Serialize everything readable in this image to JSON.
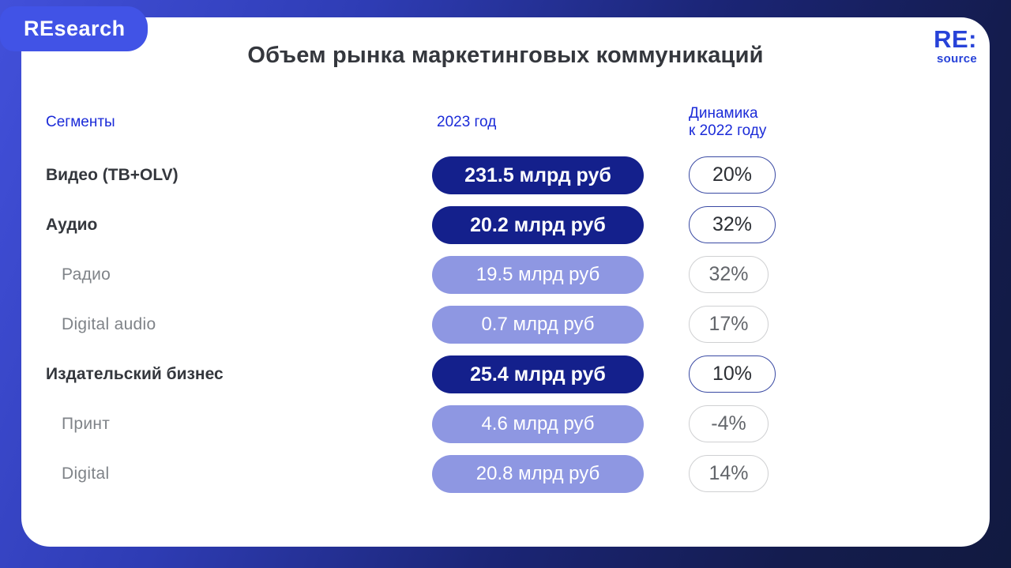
{
  "brand": {
    "badge_label": "REsearch",
    "logo_top": "RE:",
    "logo_bottom": "source"
  },
  "title": "Объем рынка маркетинговых коммуникаций",
  "columns": {
    "segments": "Сегменты",
    "year": "2023 год",
    "dynamics_line1": "Динамика",
    "dynamics_line2": "к 2022 году"
  },
  "rows": [
    {
      "label": "Видео (ТВ+OLV)",
      "value": "231.5 млрд руб",
      "dynamics": "20%",
      "level": "main"
    },
    {
      "label": "Аудио",
      "value": "20.2 млрд руб",
      "dynamics": "32%",
      "level": "main"
    },
    {
      "label": "Радио",
      "value": "19.5 млрд руб",
      "dynamics": "32%",
      "level": "sub"
    },
    {
      "label": "Digital audio",
      "value": "0.7 млрд руб",
      "dynamics": "17%",
      "level": "sub"
    },
    {
      "label": "Издательский бизнес",
      "value": "25.4 млрд руб",
      "dynamics": "10%",
      "level": "main"
    },
    {
      "label": "Принт",
      "value": "4.6 млрд руб",
      "dynamics": "-4%",
      "level": "sub"
    },
    {
      "label": "Digital",
      "value": "20.8 млрд руб",
      "dynamics": "14%",
      "level": "sub"
    }
  ],
  "colors": {
    "background_gradient_start": "#4250da",
    "background_gradient_end": "#111a40",
    "badge_blue": "#4153e6",
    "header_blue": "#1b2bd8",
    "dark_pill": "#14208c",
    "light_pill": "#8e97e2",
    "main_oval_border": "#3949a3",
    "sub_oval_border": "#cfd0d2",
    "title_text": "#34373d",
    "sub_label_text": "#7f8388"
  },
  "chart_data": {
    "type": "table",
    "title": "Объем рынка маркетинговых коммуникаций",
    "columns": [
      "Сегменты",
      "2023 год",
      "Динамика к 2022 году"
    ],
    "units": "млрд руб",
    "rows": [
      {
        "segment": "Видео (ТВ+OLV)",
        "value_2023_bln_rub": 231.5,
        "dynamics_vs_2022_pct": 20,
        "hierarchy": "main"
      },
      {
        "segment": "Аудио",
        "value_2023_bln_rub": 20.2,
        "dynamics_vs_2022_pct": 32,
        "hierarchy": "main"
      },
      {
        "segment": "Радио",
        "value_2023_bln_rub": 19.5,
        "dynamics_vs_2022_pct": 32,
        "hierarchy": "sub of Аудио"
      },
      {
        "segment": "Digital audio",
        "value_2023_bln_rub": 0.7,
        "dynamics_vs_2022_pct": 17,
        "hierarchy": "sub of Аудио"
      },
      {
        "segment": "Издательский бизнес",
        "value_2023_bln_rub": 25.4,
        "dynamics_vs_2022_pct": 10,
        "hierarchy": "main"
      },
      {
        "segment": "Принт",
        "value_2023_bln_rub": 4.6,
        "dynamics_vs_2022_pct": -4,
        "hierarchy": "sub of Издательский бизнес"
      },
      {
        "segment": "Digital",
        "value_2023_bln_rub": 20.8,
        "dynamics_vs_2022_pct": 14,
        "hierarchy": "sub of Издательский бизнес"
      }
    ]
  }
}
